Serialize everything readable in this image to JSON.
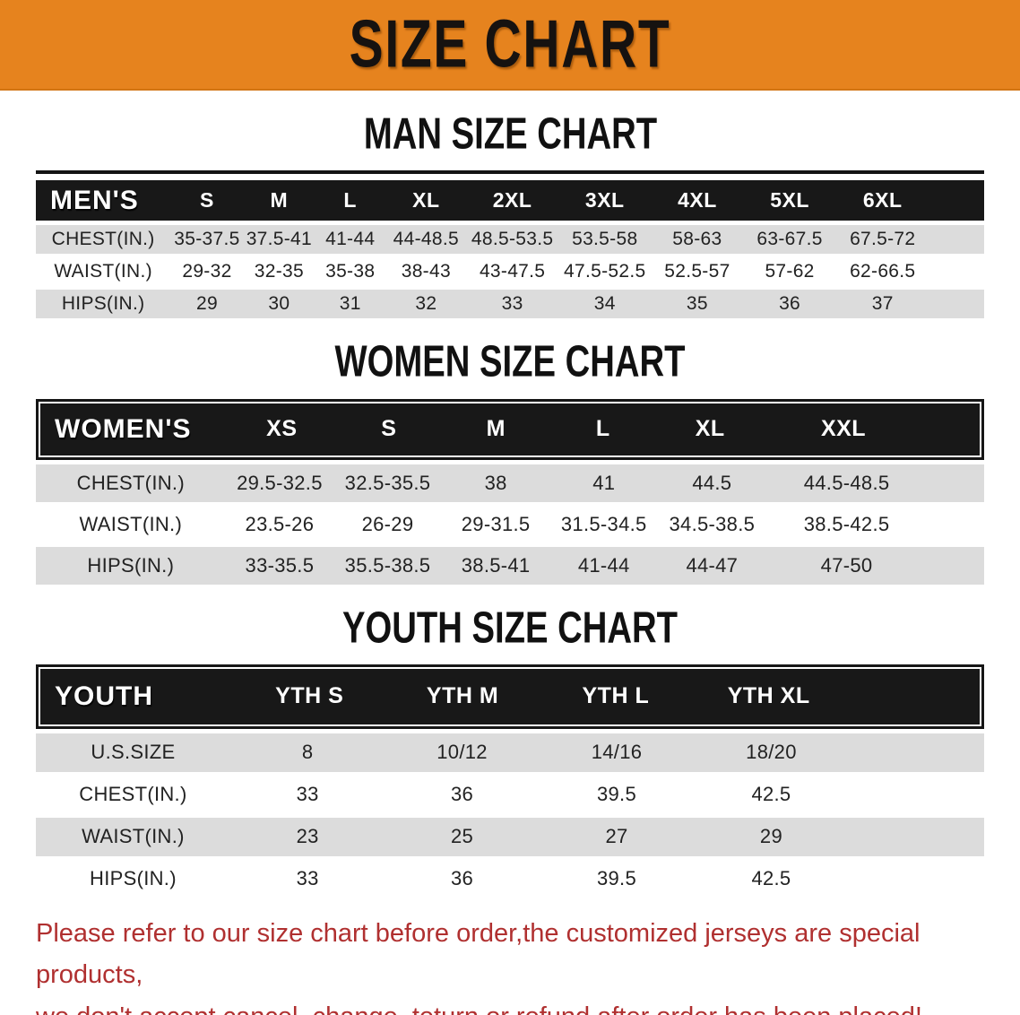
{
  "banner": {
    "title": "SIZE CHART",
    "bg_color": "#E6831E"
  },
  "colors": {
    "header_band_bg": "#181818",
    "row_alt_bg": "#DCDCDC",
    "notice_text": "#B03030"
  },
  "sections": [
    {
      "key": "men",
      "heading": "MAN SIZE CHART",
      "group_label": "MEN'S",
      "columns": [
        "S",
        "M",
        "L",
        "XL",
        "2XL",
        "3XL",
        "4XL",
        "5XL",
        "6XL"
      ],
      "rows": [
        {
          "label": "CHEST(IN.)",
          "values": [
            "35-37.5",
            "37.5-41",
            "41-44",
            "44-48.5",
            "48.5-53.5",
            "53.5-58",
            "58-63",
            "63-67.5",
            "67.5-72"
          ]
        },
        {
          "label": "WAIST(IN.)",
          "values": [
            "29-32",
            "32-35",
            "35-38",
            "38-43",
            "43-47.5",
            "47.5-52.5",
            "52.5-57",
            "57-62",
            "62-66.5"
          ]
        },
        {
          "label": "HIPS(IN.)",
          "values": [
            "29",
            "30",
            "31",
            "32",
            "33",
            "34",
            "35",
            "36",
            "37"
          ]
        }
      ]
    },
    {
      "key": "women",
      "heading": "WOMEN SIZE CHART",
      "group_label": "WOMEN'S",
      "columns": [
        "XS",
        "S",
        "M",
        "L",
        "XL",
        "XXL"
      ],
      "rows": [
        {
          "label": "CHEST(IN.)",
          "values": [
            "29.5-32.5",
            "32.5-35.5",
            "38",
            "41",
            "44.5",
            "44.5-48.5"
          ]
        },
        {
          "label": "WAIST(IN.)",
          "values": [
            "23.5-26",
            "26-29",
            "29-31.5",
            "31.5-34.5",
            "34.5-38.5",
            "38.5-42.5"
          ]
        },
        {
          "label": "HIPS(IN.)",
          "values": [
            "33-35.5",
            "35.5-38.5",
            "38.5-41",
            "41-44",
            "44-47",
            "47-50"
          ]
        }
      ]
    },
    {
      "key": "youth",
      "heading": "YOUTH SIZE CHART",
      "group_label": "YOUTH",
      "columns": [
        "YTH S",
        "YTH M",
        "YTH L",
        "YTH XL"
      ],
      "rows": [
        {
          "label": "U.S.SIZE",
          "values": [
            "8",
            "10/12",
            "14/16",
            "18/20"
          ]
        },
        {
          "label": "CHEST(IN.)",
          "values": [
            "33",
            "36",
            "39.5",
            "42.5"
          ]
        },
        {
          "label": "WAIST(IN.)",
          "values": [
            "23",
            "25",
            "27",
            "29"
          ]
        },
        {
          "label": "HIPS(IN.)",
          "values": [
            "33",
            "36",
            "39.5",
            "42.5"
          ]
        }
      ]
    }
  ],
  "notice": {
    "line1": "Please refer to our size chart before order,the customized jerseys are special products,",
    "line2": "we don't accept cancel, change, teturn or refund after order has been placed!"
  }
}
